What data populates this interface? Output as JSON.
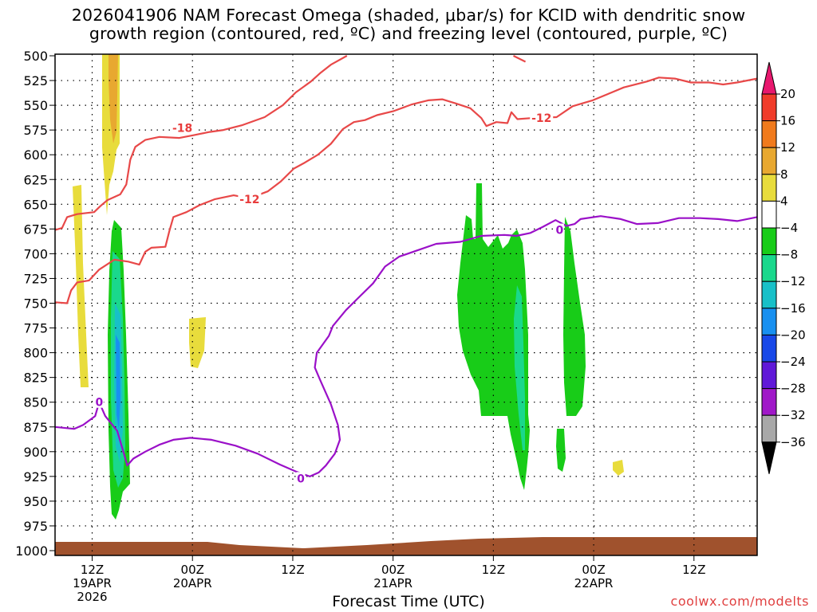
{
  "chart_data": {
    "type": "contour",
    "title_line1": "2026041906 NAM Forecast Omega (shaded, μbar/s) for KCID with dendritic snow",
    "title_line2": "growth region (contoured, red, ºC) and freezing level (contoured, purple, ºC)",
    "xlabel": "Forecast Time (UTC)",
    "source": "coolwx.com/modelts",
    "y_ticks": [
      "500",
      "525",
      "550",
      "575",
      "600",
      "625",
      "650",
      "675",
      "700",
      "725",
      "750",
      "775",
      "800",
      "825",
      "850",
      "875",
      "900",
      "925",
      "950",
      "975",
      "1000"
    ],
    "y_range": [
      1000,
      500
    ],
    "x_range_hours": [
      -3.7,
      66.3
    ],
    "x_ticks": [
      {
        "h": 0,
        "l1": "12Z",
        "l2": "19APR",
        "l3": "2026"
      },
      {
        "h": 10,
        "l1": "00Z",
        "l2": "20APR",
        "l3": ""
      },
      {
        "h": 20,
        "l1": "12Z",
        "l2": "",
        "l3": ""
      },
      {
        "h": 30,
        "l1": "00Z",
        "l2": "21APR",
        "l3": ""
      },
      {
        "h": 40,
        "l1": "12Z",
        "l2": "",
        "l3": ""
      },
      {
        "h": 50,
        "l1": "00Z",
        "l2": "22APR",
        "l3": ""
      },
      {
        "h": 60,
        "l1": "12Z",
        "l2": "",
        "l3": ""
      }
    ],
    "colorbar": {
      "labels": [
        "20",
        "16",
        "12",
        "8",
        "4",
        "−4",
        "−8",
        "−12",
        "−16",
        "−20",
        "−24",
        "−28",
        "−32",
        "−36"
      ],
      "colors": [
        "#e8186e",
        "#f03c2a",
        "#f07a1c",
        "#e8a830",
        "#e8dc3c",
        "#ffffff",
        "#18cc18",
        "#1ad88c",
        "#18c0c8",
        "#1890f0",
        "#1848e8",
        "#6018d8",
        "#a018c8",
        "#a8a8a8",
        "#000000"
      ]
    },
    "contour_labels": [
      {
        "text": "-18",
        "h": 9.0,
        "p": 573,
        "color": "#e83c3c"
      },
      {
        "text": "-12",
        "h": 15.7,
        "p": 645,
        "color": "#e83c3c"
      },
      {
        "text": "-12",
        "h": 44.8,
        "p": 563,
        "color": "#e83c3c"
      },
      {
        "text": "0",
        "h": 0.7,
        "p": 850,
        "color": "#9a10c8"
      },
      {
        "text": "0",
        "h": 20.8,
        "p": 927,
        "color": "#9a10c8"
      },
      {
        "text": "0",
        "h": 46.6,
        "p": 676,
        "color": "#9a10c8"
      }
    ],
    "contour_lines": [
      {
        "name": "-18C",
        "color": "#e84848",
        "points": [
          [
            -3.7,
            676
          ],
          [
            -3.0,
            674
          ],
          [
            -2.5,
            663
          ],
          [
            -1.5,
            660
          ],
          [
            0.2,
            658
          ],
          [
            0.8,
            652
          ],
          [
            1.5,
            646
          ],
          [
            2.8,
            640
          ],
          [
            3.4,
            630
          ],
          [
            3.8,
            605
          ],
          [
            4.3,
            592
          ],
          [
            5.3,
            585
          ],
          [
            6.7,
            582
          ],
          [
            8.7,
            583
          ],
          [
            10.2,
            580
          ],
          [
            11.7,
            577
          ],
          [
            13.1,
            575
          ],
          [
            15.0,
            570
          ],
          [
            17.2,
            562
          ],
          [
            19.0,
            550
          ],
          [
            20.3,
            537
          ],
          [
            21.8,
            526
          ],
          [
            22.8,
            517
          ],
          [
            23.8,
            509
          ],
          [
            25.4,
            500
          ]
        ]
      },
      {
        "name": "-18C-b",
        "color": "#e84848",
        "points": [
          [
            42.0,
            500
          ],
          [
            43.2,
            506
          ]
        ]
      },
      {
        "name": "-12C",
        "color": "#e84848",
        "points": [
          [
            -3.7,
            749
          ],
          [
            -2.5,
            750
          ],
          [
            -2.1,
            737
          ],
          [
            -1.5,
            729
          ],
          [
            -0.3,
            727
          ],
          [
            0.7,
            716
          ],
          [
            2.2,
            706
          ],
          [
            3.6,
            708
          ],
          [
            4.7,
            711
          ],
          [
            5.3,
            698
          ],
          [
            5.9,
            694
          ],
          [
            7.3,
            693
          ],
          [
            7.7,
            677
          ],
          [
            8.1,
            663
          ],
          [
            9.4,
            658
          ],
          [
            10.7,
            651
          ],
          [
            12.2,
            645
          ],
          [
            14.1,
            641
          ],
          [
            15.7,
            644
          ],
          [
            17.5,
            637
          ],
          [
            18.8,
            627
          ],
          [
            20.1,
            614
          ],
          [
            21.2,
            608
          ],
          [
            22.5,
            600
          ],
          [
            23.8,
            589
          ],
          [
            25.0,
            574
          ],
          [
            26.1,
            567
          ],
          [
            27.2,
            565
          ],
          [
            28.4,
            560
          ],
          [
            30.0,
            556
          ],
          [
            31.9,
            549
          ],
          [
            33.5,
            545
          ],
          [
            34.9,
            544
          ],
          [
            36.2,
            548
          ],
          [
            37.7,
            553
          ],
          [
            38.8,
            563
          ],
          [
            39.3,
            571
          ],
          [
            40.3,
            567
          ],
          [
            41.4,
            568
          ],
          [
            41.8,
            557
          ],
          [
            42.4,
            564
          ],
          [
            43.8,
            563
          ],
          [
            46.3,
            562
          ],
          [
            47.9,
            551
          ],
          [
            49.9,
            545
          ],
          [
            51.8,
            537
          ],
          [
            53.0,
            532
          ],
          [
            55.3,
            526
          ],
          [
            56.5,
            522
          ],
          [
            58.1,
            523
          ],
          [
            59.7,
            527
          ],
          [
            61.5,
            527
          ],
          [
            62.9,
            529
          ],
          [
            64.3,
            527
          ],
          [
            66.3,
            523
          ]
        ]
      },
      {
        "name": "0C",
        "color": "#9a10c8",
        "points": [
          [
            -3.7,
            875
          ],
          [
            -1.8,
            877
          ],
          [
            -0.9,
            873
          ],
          [
            0.3,
            864
          ],
          [
            0.7,
            850
          ],
          [
            1.3,
            864
          ],
          [
            2.5,
            879
          ],
          [
            3.2,
            903
          ],
          [
            3.5,
            914
          ],
          [
            4.1,
            907
          ],
          [
            5.3,
            900
          ],
          [
            6.7,
            893
          ],
          [
            8.1,
            888
          ],
          [
            9.8,
            886
          ],
          [
            11.9,
            888
          ],
          [
            14.3,
            894
          ],
          [
            16.5,
            902
          ],
          [
            18.7,
            913
          ],
          [
            20.3,
            920
          ],
          [
            21.7,
            925
          ],
          [
            22.6,
            921
          ],
          [
            23.3,
            914
          ],
          [
            24.2,
            902
          ],
          [
            24.7,
            888
          ],
          [
            24.5,
            873
          ],
          [
            23.8,
            852
          ],
          [
            22.7,
            827
          ],
          [
            22.2,
            815
          ],
          [
            22.4,
            800
          ],
          [
            23.6,
            783
          ],
          [
            24.0,
            773
          ],
          [
            25.3,
            757
          ],
          [
            26.6,
            744
          ],
          [
            28.0,
            730
          ],
          [
            29.2,
            713
          ],
          [
            30.6,
            703
          ],
          [
            32.3,
            697
          ],
          [
            34.3,
            690
          ],
          [
            36.7,
            688
          ],
          [
            38.8,
            682
          ],
          [
            41.1,
            681
          ],
          [
            42.3,
            682
          ],
          [
            43.7,
            679
          ],
          [
            44.9,
            673
          ],
          [
            46.2,
            666
          ],
          [
            47.3,
            672
          ],
          [
            48.1,
            670
          ],
          [
            48.7,
            665
          ],
          [
            50.7,
            662
          ],
          [
            52.7,
            665
          ],
          [
            54.3,
            670
          ],
          [
            56.4,
            669
          ],
          [
            58.5,
            664
          ],
          [
            60.6,
            664
          ],
          [
            62.4,
            665
          ],
          [
            64.3,
            667
          ],
          [
            66.3,
            663
          ]
        ]
      }
    ]
  }
}
